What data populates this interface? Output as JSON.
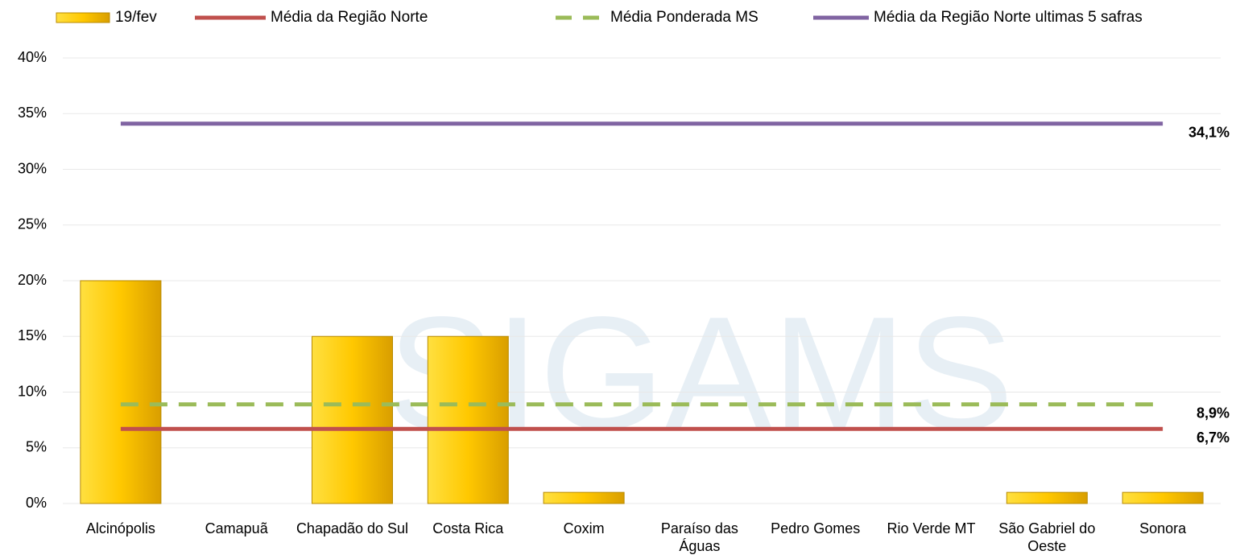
{
  "chart_data": {
    "type": "bar",
    "watermark": "SIGAMS",
    "categories": [
      "Alcinópolis",
      "Camapuã",
      "Chapadão do Sul",
      "Costa Rica",
      "Coxim",
      "Paraíso das Águas",
      "Pedro Gomes",
      "Rio Verde MT",
      "São Gabriel do Oeste",
      "Sonora"
    ],
    "series": [
      {
        "name": "19/fev",
        "type": "bar",
        "color": "#f5c000",
        "values": [
          20,
          0,
          15,
          15,
          1,
          0,
          0,
          0,
          1,
          1
        ]
      },
      {
        "name": "Média da Região Norte",
        "type": "line",
        "color": "#c0504d",
        "values": [
          6.7,
          6.7,
          6.7,
          6.7,
          6.7,
          6.7,
          6.7,
          6.7,
          6.7,
          6.7
        ],
        "value_labels": [
          null,
          null,
          null,
          null,
          null,
          null,
          null,
          null,
          null,
          "6,7%"
        ]
      },
      {
        "name": "Média Ponderada MS",
        "type": "line",
        "dashed": true,
        "color": "#9bbb59",
        "values": [
          8.9,
          8.9,
          8.9,
          8.9,
          8.9,
          8.9,
          8.9,
          8.9,
          8.9,
          8.9
        ],
        "value_labels": [
          null,
          null,
          null,
          null,
          null,
          null,
          null,
          null,
          null,
          "8,9%"
        ]
      },
      {
        "name": "Média da Região Norte ultimas 5 safras",
        "type": "line",
        "color": "#8064a2",
        "values": [
          34.1,
          34.1,
          34.1,
          34.1,
          34.1,
          34.1,
          34.1,
          34.1,
          34.1,
          34.1
        ],
        "value_labels": [
          null,
          null,
          null,
          null,
          null,
          null,
          null,
          null,
          null,
          "34,1%"
        ]
      }
    ],
    "ylim": [
      0,
      40
    ],
    "yticks": [
      {
        "value": 0,
        "label": "0%"
      },
      {
        "value": 5,
        "label": "5%"
      },
      {
        "value": 10,
        "label": "10%"
      },
      {
        "value": 15,
        "label": "15%"
      },
      {
        "value": 20,
        "label": "20%"
      },
      {
        "value": 25,
        "label": "25%"
      },
      {
        "value": 30,
        "label": "30%"
      },
      {
        "value": 35,
        "label": "35%"
      },
      {
        "value": 40,
        "label": "40%"
      }
    ],
    "grid": true,
    "legend": "top"
  }
}
